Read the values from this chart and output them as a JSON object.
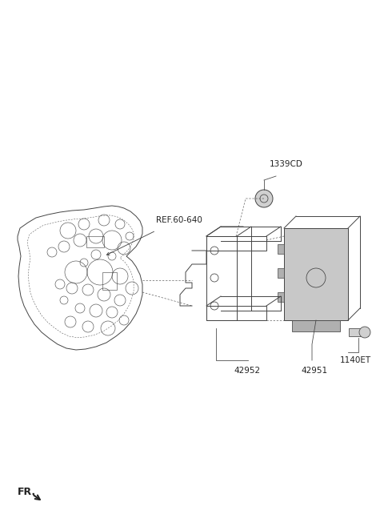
{
  "background_color": "#ffffff",
  "parts": [
    {
      "id": "42952",
      "label": "42952"
    },
    {
      "id": "42951",
      "label": "42951"
    },
    {
      "id": "1339CD",
      "label": "1339CD"
    },
    {
      "id": "1140ET",
      "label": "1140ET"
    },
    {
      "id": "REF60640",
      "label": "REF.60-640"
    }
  ],
  "fr_label": "FR.",
  "line_color": "#444444",
  "text_color": "#222222",
  "label_fontsize": 7.5,
  "ref_fontsize": 7.5
}
